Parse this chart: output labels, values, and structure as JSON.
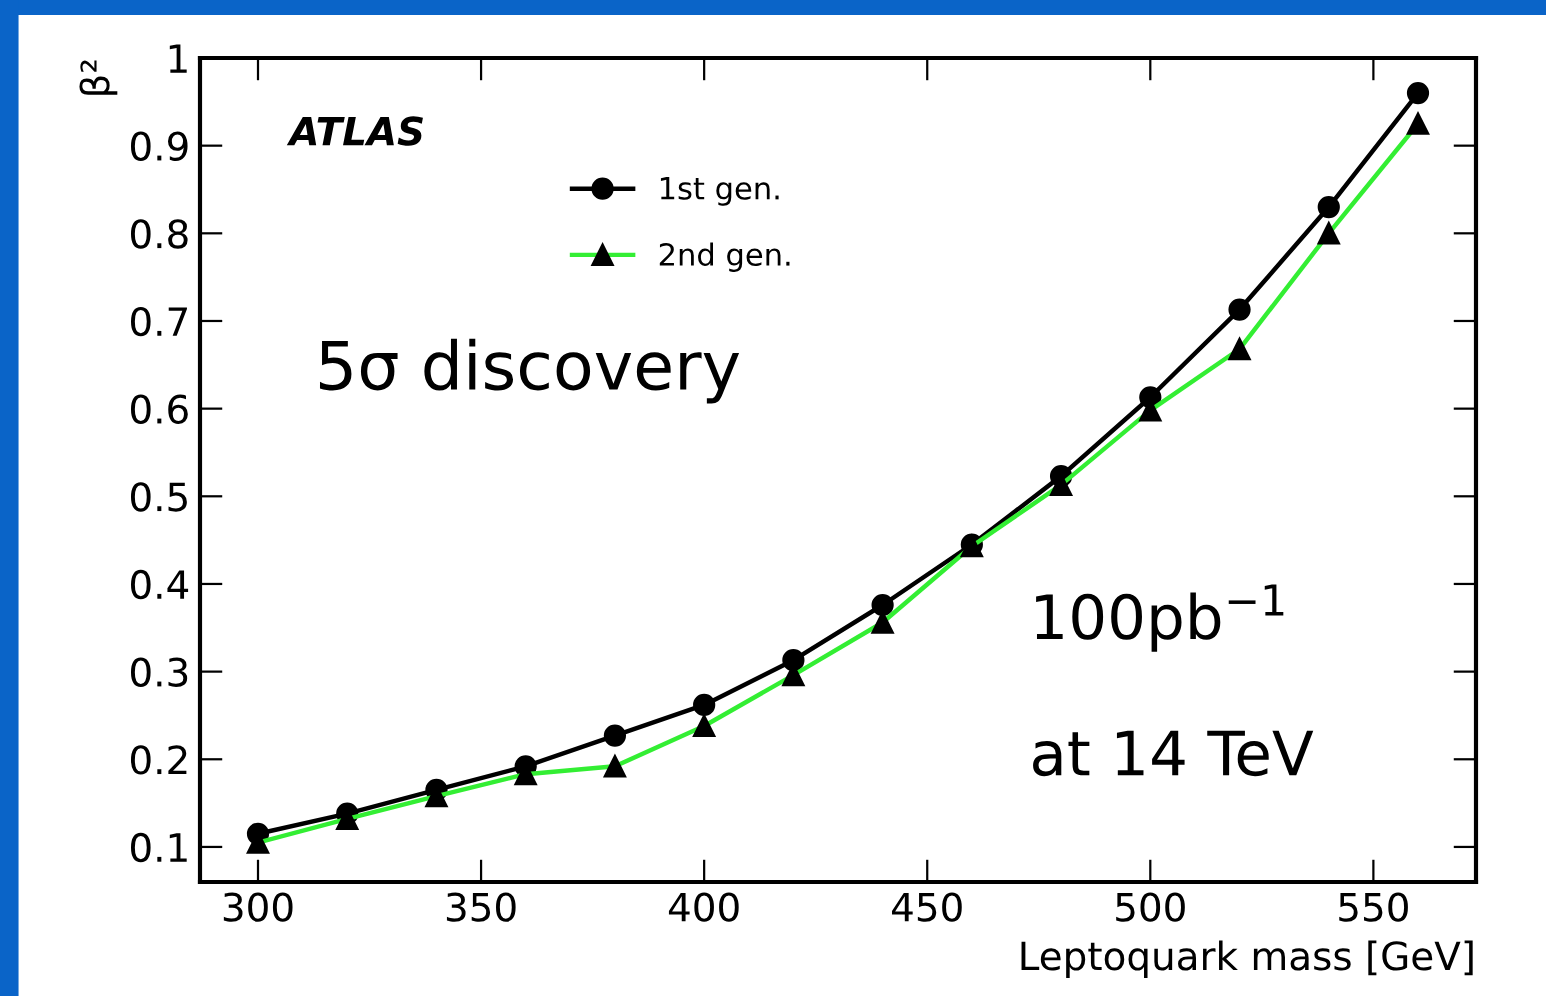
{
  "chart_data": {
    "type": "line",
    "xlabel": "Leptoquark mass [GeV]",
    "ylabel": "β²",
    "x": [
      300,
      320,
      340,
      360,
      380,
      400,
      420,
      440,
      460,
      480,
      500,
      520,
      540,
      560
    ],
    "series": [
      {
        "name": "1st gen.",
        "color": "#000000",
        "marker": "circle",
        "values": [
          0.115,
          0.138,
          0.165,
          0.192,
          0.227,
          0.262,
          0.313,
          0.376,
          0.445,
          0.523,
          0.613,
          0.713,
          0.83,
          0.96
        ]
      },
      {
        "name": "2nd gen.",
        "color": "#33ee33",
        "marker": "triangle",
        "values": [
          0.105,
          0.132,
          0.158,
          0.183,
          0.192,
          0.238,
          0.296,
          0.356,
          0.443,
          0.513,
          0.598,
          0.668,
          0.8,
          0.925
        ]
      }
    ],
    "xlim": [
      287,
      573
    ],
    "ylim": [
      0.06,
      1
    ],
    "xticks": [
      300,
      350,
      400,
      450,
      500,
      550
    ],
    "yticks": [
      0.1,
      0.2,
      0.3,
      0.4,
      0.5,
      0.6,
      0.7,
      0.8,
      0.9,
      1
    ],
    "grid": false,
    "legend": "top left",
    "line_style": "solid",
    "annotations": [
      "ATLAS",
      "5σ discovery",
      "100pb$^{−1}$",
      "at 14 TeV"
    ]
  }
}
